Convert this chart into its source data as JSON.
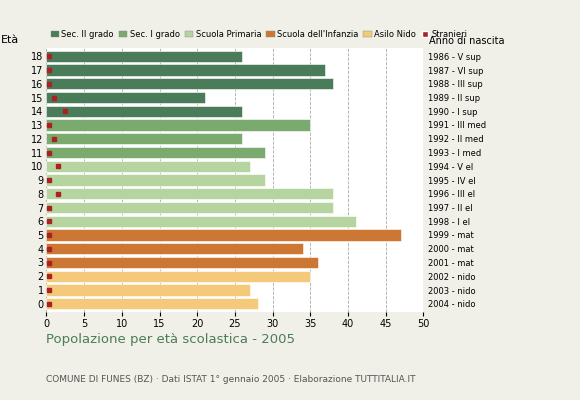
{
  "ages": [
    18,
    17,
    16,
    15,
    14,
    13,
    12,
    11,
    10,
    9,
    8,
    7,
    6,
    5,
    4,
    3,
    2,
    1,
    0
  ],
  "values": [
    26,
    37,
    38,
    21,
    26,
    35,
    26,
    29,
    27,
    29,
    38,
    38,
    41,
    47,
    34,
    36,
    35,
    27,
    28
  ],
  "stranieri": [
    1,
    1,
    1,
    1,
    1,
    1,
    1,
    1,
    1,
    1,
    1,
    1,
    1,
    1,
    1,
    1,
    1,
    1,
    1
  ],
  "stranieri_x": [
    0.3,
    0.3,
    0.3,
    1.0,
    2.5,
    0.3,
    1.0,
    0.3,
    1.5,
    0.3,
    1.5,
    0.3,
    0.3,
    0.3,
    0.3,
    0.3,
    0.3,
    0.3,
    0.3
  ],
  "anno_nascita": [
    "1986 - V sup",
    "1987 - VI sup",
    "1988 - III sup",
    "1989 - II sup",
    "1990 - I sup",
    "1991 - III med",
    "1992 - II med",
    "1993 - I med",
    "1994 - V el",
    "1995 - IV el",
    "1996 - III el",
    "1997 - II el",
    "1998 - I el",
    "1999 - mat",
    "2000 - mat",
    "2001 - mat",
    "2002 - nido",
    "2003 - nido",
    "2004 - nido"
  ],
  "bar_colors": [
    "#4a7c59",
    "#4a7c59",
    "#4a7c59",
    "#4a7c59",
    "#4a7c59",
    "#7aaa6e",
    "#7aaa6e",
    "#7aaa6e",
    "#b5d4a0",
    "#b5d4a0",
    "#b5d4a0",
    "#b5d4a0",
    "#b5d4a0",
    "#cc7733",
    "#cc7733",
    "#cc7733",
    "#f5c97a",
    "#f5c97a",
    "#f5c97a"
  ],
  "stranieri_color": "#aa2222",
  "title": "Popolazione per età scolastica - 2005",
  "subtitle": "COMUNE DI FUNES (BZ) · Dati ISTAT 1° gennaio 2005 · Elaborazione TUTTITALIA.IT",
  "ylabel": "Età",
  "anno_label": "Anno di nascita",
  "xlim": [
    0,
    50
  ],
  "xticks": [
    0,
    5,
    10,
    15,
    20,
    25,
    30,
    35,
    40,
    45,
    50
  ],
  "bg_color": "#f0f0e8",
  "plot_bg": "#ffffff",
  "legend_labels": [
    "Sec. II grado",
    "Sec. I grado",
    "Scuola Primaria",
    "Scuola dell'Infanzia",
    "Asilo Nido",
    "Stranieri"
  ],
  "legend_colors": [
    "#4a7c59",
    "#7aaa6e",
    "#b5d4a0",
    "#cc7733",
    "#f5c97a",
    "#aa2222"
  ]
}
